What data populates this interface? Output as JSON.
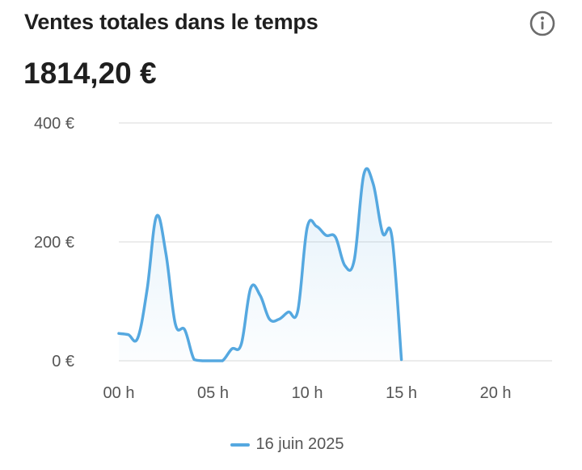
{
  "card": {
    "title": "Ventes totales dans le temps",
    "total": "1814,20 €",
    "info_icon": "info-icon"
  },
  "colors": {
    "series": "#55a8e0",
    "grid": "#e6e6e6",
    "axis_text": "#555555",
    "title": "#1f1f1f"
  },
  "chart_data": {
    "type": "area",
    "title": "Ventes totales dans le temps",
    "xlabel": "",
    "ylabel": "",
    "ylim": [
      0,
      400
    ],
    "xlim": [
      0,
      23
    ],
    "grid": true,
    "legend_position": "bottom",
    "y_ticks": [
      {
        "value": 0,
        "label": "0 €"
      },
      {
        "value": 200,
        "label": "200 €"
      },
      {
        "value": 400,
        "label": "400 €"
      }
    ],
    "x_ticks": [
      {
        "value": 0,
        "label": "00 h"
      },
      {
        "value": 5,
        "label": "05 h"
      },
      {
        "value": 10,
        "label": "10 h"
      },
      {
        "value": 15,
        "label": "15 h"
      },
      {
        "value": 20,
        "label": "20 h"
      }
    ],
    "series": [
      {
        "name": "16 juin 2025",
        "points": [
          [
            0,
            46
          ],
          [
            0.5,
            44
          ],
          [
            1,
            38
          ],
          [
            1.5,
            120
          ],
          [
            2,
            243
          ],
          [
            2.5,
            180
          ],
          [
            3,
            62
          ],
          [
            3.5,
            52
          ],
          [
            4,
            2
          ],
          [
            4.5,
            0
          ],
          [
            5,
            0
          ],
          [
            5.5,
            0
          ],
          [
            6,
            20
          ],
          [
            6.5,
            28
          ],
          [
            7,
            122
          ],
          [
            7.5,
            110
          ],
          [
            8,
            70
          ],
          [
            8.5,
            70
          ],
          [
            9,
            82
          ],
          [
            9.5,
            84
          ],
          [
            10,
            224
          ],
          [
            10.5,
            226
          ],
          [
            11,
            211
          ],
          [
            11.5,
            208
          ],
          [
            12,
            160
          ],
          [
            12.5,
            170
          ],
          [
            13,
            313
          ],
          [
            13.5,
            298
          ],
          [
            14,
            215
          ],
          [
            14.5,
            208
          ],
          [
            15,
            2
          ]
        ]
      }
    ]
  }
}
